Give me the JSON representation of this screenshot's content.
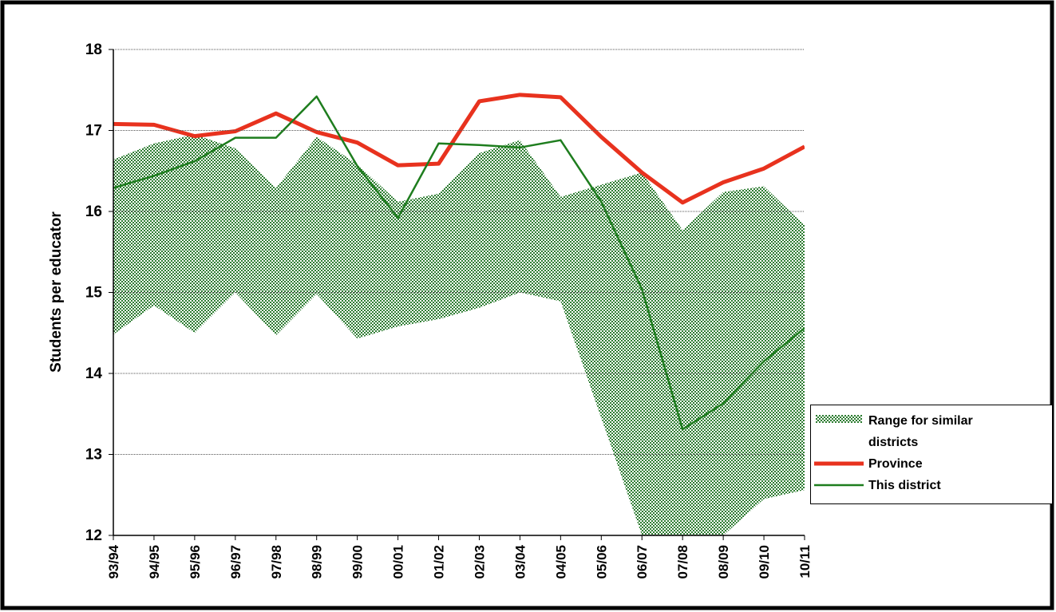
{
  "chart_data": {
    "type": "line",
    "y_label": "Students per educator",
    "categories": [
      "93/94",
      "94/95",
      "95/96",
      "96/97",
      "97/98",
      "98/99",
      "99/00",
      "00/01",
      "01/02",
      "02/03",
      "03/04",
      "04/05",
      "05/06",
      "06/07",
      "07/08",
      "08/09",
      "09/10",
      "10/11"
    ],
    "ylim": [
      12,
      18
    ],
    "yticks": [
      12,
      13,
      14,
      15,
      16,
      17,
      18
    ],
    "grid": true,
    "range": {
      "name": "Range for similar districts",
      "color": "#2e7d32",
      "upper": [
        16.64,
        16.84,
        16.95,
        16.78,
        16.29,
        16.92,
        16.58,
        16.12,
        16.22,
        16.72,
        16.88,
        16.18,
        16.33,
        16.48,
        15.77,
        16.24,
        16.31,
        15.83
      ],
      "lower": [
        14.48,
        14.84,
        14.5,
        15.0,
        14.47,
        14.98,
        14.43,
        14.58,
        14.67,
        14.81,
        15.0,
        14.89,
        13.45,
        12,
        12,
        12,
        12.45,
        12.56
      ]
    },
    "series": [
      {
        "name": "Province",
        "color": "#e8321e",
        "width": 5,
        "values": [
          17.08,
          17.07,
          16.93,
          16.99,
          17.21,
          16.98,
          16.85,
          16.57,
          16.59,
          17.36,
          17.44,
          17.41,
          16.92,
          16.48,
          16.11,
          16.36,
          16.53,
          16.8
        ]
      },
      {
        "name": "This district",
        "color": "#1e7d1e",
        "width": 2.5,
        "values": [
          16.29,
          16.44,
          16.62,
          16.91,
          16.91,
          17.42,
          16.56,
          15.92,
          16.84,
          16.82,
          16.79,
          16.88,
          16.12,
          15.04,
          13.31,
          13.63,
          14.15,
          14.56
        ]
      }
    ]
  }
}
